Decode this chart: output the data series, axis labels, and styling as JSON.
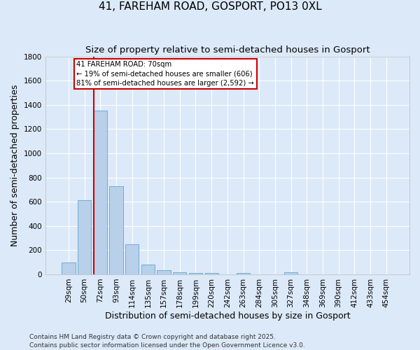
{
  "title": "41, FAREHAM ROAD, GOSPORT, PO13 0XL",
  "subtitle": "Size of property relative to semi-detached houses in Gosport",
  "xlabel": "Distribution of semi-detached houses by size in Gosport",
  "ylabel": "Number of semi-detached properties",
  "footnote": "Contains HM Land Registry data © Crown copyright and database right 2025.\nContains public sector information licensed under the Open Government Licence v3.0.",
  "categories": [
    "29sqm",
    "50sqm",
    "72sqm",
    "93sqm",
    "114sqm",
    "135sqm",
    "157sqm",
    "178sqm",
    "199sqm",
    "220sqm",
    "242sqm",
    "263sqm",
    "284sqm",
    "305sqm",
    "327sqm",
    "348sqm",
    "369sqm",
    "390sqm",
    "412sqm",
    "433sqm",
    "454sqm"
  ],
  "values": [
    100,
    610,
    1350,
    730,
    250,
    80,
    35,
    15,
    10,
    10,
    0,
    10,
    0,
    0,
    15,
    0,
    0,
    0,
    0,
    0,
    0
  ],
  "bar_color": "#b8d0ea",
  "bar_edge_color": "#6baed6",
  "highlight_index": 2,
  "highlight_color": "#cc0000",
  "ylim": [
    0,
    1800
  ],
  "yticks": [
    0,
    200,
    400,
    600,
    800,
    1000,
    1200,
    1400,
    1600,
    1800
  ],
  "annotation_text": "41 FAREHAM ROAD: 70sqm\n← 19% of semi-detached houses are smaller (606)\n81% of semi-detached houses are larger (2,592) →",
  "annotation_box_color": "#ffffff",
  "annotation_box_edge": "#cc0000",
  "background_color": "#dce9f8",
  "grid_color": "#ffffff",
  "title_fontsize": 11,
  "subtitle_fontsize": 9.5,
  "axis_label_fontsize": 9,
  "tick_fontsize": 7.5,
  "footnote_fontsize": 6.5
}
